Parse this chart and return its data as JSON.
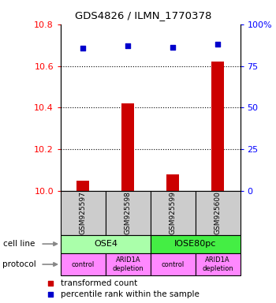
{
  "title": "GDS4826 / ILMN_1770378",
  "samples": [
    "GSM925597",
    "GSM925598",
    "GSM925599",
    "GSM925600"
  ],
  "bar_values": [
    10.05,
    10.42,
    10.08,
    10.62
  ],
  "blue_values": [
    85.6,
    87.2,
    86.0,
    87.8
  ],
  "ylim_left": [
    10.0,
    10.8
  ],
  "ylim_right": [
    0,
    100
  ],
  "yticks_left": [
    10.0,
    10.2,
    10.4,
    10.6,
    10.8
  ],
  "yticks_right": [
    0,
    25,
    50,
    75,
    100
  ],
  "ytick_right_labels": [
    "0",
    "25",
    "50",
    "75",
    "100%"
  ],
  "bar_color": "#cc0000",
  "blue_color": "#0000cc",
  "cell_line_labels": [
    "OSE4",
    "IOSE80pc"
  ],
  "cell_line_colors": [
    "#aaffaa",
    "#44ee44"
  ],
  "cell_line_spans": [
    [
      0,
      2
    ],
    [
      2,
      4
    ]
  ],
  "protocol_labels": [
    "control",
    "ARID1A\ndepletion",
    "control",
    "ARID1A\ndepletion"
  ],
  "protocol_color": "#ff88ff",
  "gsm_bg_color": "#cccccc",
  "legend_red_label": "transformed count",
  "legend_blue_label": "percentile rank within the sample",
  "cell_line_row_label": "cell line",
  "protocol_row_label": "protocol",
  "fig_width": 3.5,
  "fig_height": 3.84,
  "dpi": 100
}
